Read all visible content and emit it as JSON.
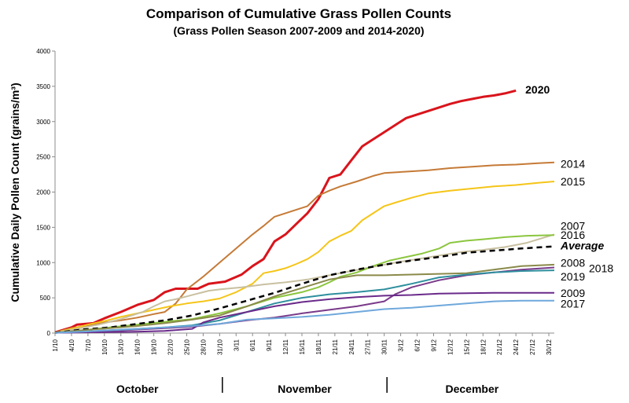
{
  "chart_data": {
    "type": "line",
    "title": "Comparison of Cumulative Grass Pollen Counts",
    "subtitle": "(Grass Pollen Season 2007-2009 and 2014-2020)",
    "ylabel": "Cumulative Daily Pollen Count (grains/m³)",
    "ylim": [
      0,
      4000
    ],
    "yticks": [
      0,
      500,
      1000,
      1500,
      2000,
      2500,
      3000,
      3500,
      4000
    ],
    "xlim": [
      0,
      91
    ],
    "xticks": [
      "1/10",
      "4/10",
      "7/10",
      "10/10",
      "13/10",
      "16/10",
      "19/10",
      "22/10",
      "25/10",
      "28/10",
      "31/10",
      "3/11",
      "6/11",
      "9/11",
      "12/11",
      "15/11",
      "18/11",
      "21/11",
      "24/11",
      "27/11",
      "30/11",
      "3/12",
      "6/12",
      "9/12",
      "12/12",
      "15/12",
      "18/12",
      "21/12",
      "24/12",
      "27/12",
      "30/12"
    ],
    "months": [
      {
        "label": "October",
        "center": 15
      },
      {
        "label": "November",
        "center": 45.5
      },
      {
        "label": "December",
        "center": 76
      }
    ],
    "month_dividers": [
      30.5,
      60.5
    ],
    "grid": false,
    "legend": "end-of-line labels",
    "series": [
      {
        "name": "2020",
        "color": "#d9141c",
        "width": 3,
        "dash": "",
        "bold": true,
        "points": [
          [
            0,
            10
          ],
          [
            3,
            80
          ],
          [
            4,
            120
          ],
          [
            7,
            140
          ],
          [
            9,
            210
          ],
          [
            12,
            300
          ],
          [
            15,
            400
          ],
          [
            18,
            470
          ],
          [
            20,
            580
          ],
          [
            22,
            630
          ],
          [
            26,
            630
          ],
          [
            28,
            700
          ],
          [
            31,
            730
          ],
          [
            34,
            830
          ],
          [
            36,
            950
          ],
          [
            38,
            1050
          ],
          [
            40,
            1300
          ],
          [
            42,
            1400
          ],
          [
            44,
            1550
          ],
          [
            46,
            1700
          ],
          [
            48,
            1900
          ],
          [
            50,
            2200
          ],
          [
            52,
            2250
          ],
          [
            54,
            2450
          ],
          [
            56,
            2650
          ],
          [
            58,
            2750
          ],
          [
            60,
            2850
          ],
          [
            62,
            2950
          ],
          [
            64,
            3050
          ],
          [
            66,
            3100
          ],
          [
            68,
            3150
          ],
          [
            70,
            3200
          ],
          [
            72,
            3250
          ],
          [
            74,
            3290
          ],
          [
            76,
            3320
          ],
          [
            78,
            3350
          ],
          [
            80,
            3370
          ],
          [
            82,
            3400
          ],
          [
            84,
            3440
          ]
        ]
      },
      {
        "name": "2014",
        "color": "#c57a36",
        "width": 2,
        "dash": "",
        "points": [
          [
            0,
            10
          ],
          [
            3,
            70
          ],
          [
            6,
            110
          ],
          [
            9,
            150
          ],
          [
            12,
            180
          ],
          [
            15,
            220
          ],
          [
            18,
            270
          ],
          [
            20,
            300
          ],
          [
            22,
            420
          ],
          [
            24,
            620
          ],
          [
            27,
            800
          ],
          [
            30,
            1000
          ],
          [
            33,
            1200
          ],
          [
            36,
            1400
          ],
          [
            38,
            1520
          ],
          [
            40,
            1650
          ],
          [
            42,
            1700
          ],
          [
            44,
            1750
          ],
          [
            46,
            1800
          ],
          [
            48,
            1950
          ],
          [
            50,
            2020
          ],
          [
            52,
            2080
          ],
          [
            55,
            2150
          ],
          [
            58,
            2230
          ],
          [
            60,
            2270
          ],
          [
            64,
            2290
          ],
          [
            68,
            2310
          ],
          [
            72,
            2340
          ],
          [
            76,
            2360
          ],
          [
            80,
            2380
          ],
          [
            84,
            2390
          ],
          [
            88,
            2410
          ],
          [
            91,
            2420
          ]
        ]
      },
      {
        "name": "2015",
        "color": "#f5c518",
        "width": 2,
        "dash": "",
        "points": [
          [
            0,
            5
          ],
          [
            3,
            60
          ],
          [
            6,
            120
          ],
          [
            9,
            170
          ],
          [
            12,
            230
          ],
          [
            15,
            280
          ],
          [
            18,
            330
          ],
          [
            21,
            380
          ],
          [
            24,
            420
          ],
          [
            27,
            450
          ],
          [
            30,
            490
          ],
          [
            33,
            580
          ],
          [
            36,
            700
          ],
          [
            38,
            850
          ],
          [
            40,
            880
          ],
          [
            42,
            920
          ],
          [
            44,
            980
          ],
          [
            46,
            1050
          ],
          [
            48,
            1150
          ],
          [
            50,
            1300
          ],
          [
            52,
            1380
          ],
          [
            54,
            1450
          ],
          [
            56,
            1600
          ],
          [
            58,
            1700
          ],
          [
            60,
            1800
          ],
          [
            62,
            1850
          ],
          [
            65,
            1920
          ],
          [
            68,
            1980
          ],
          [
            72,
            2020
          ],
          [
            76,
            2050
          ],
          [
            80,
            2080
          ],
          [
            84,
            2100
          ],
          [
            88,
            2130
          ],
          [
            91,
            2150
          ]
        ]
      },
      {
        "name": "2007",
        "color": "#c8c0a0",
        "width": 2,
        "dash": "",
        "points": [
          [
            0,
            5
          ],
          [
            4,
            60
          ],
          [
            8,
            120
          ],
          [
            12,
            200
          ],
          [
            16,
            300
          ],
          [
            18,
            380
          ],
          [
            20,
            450
          ],
          [
            22,
            480
          ],
          [
            24,
            520
          ],
          [
            26,
            560
          ],
          [
            28,
            600
          ],
          [
            30,
            620
          ],
          [
            34,
            650
          ],
          [
            38,
            690
          ],
          [
            42,
            720
          ],
          [
            46,
            760
          ],
          [
            50,
            820
          ],
          [
            54,
            880
          ],
          [
            58,
            940
          ],
          [
            62,
            1000
          ],
          [
            66,
            1050
          ],
          [
            70,
            1100
          ],
          [
            74,
            1150
          ],
          [
            78,
            1180
          ],
          [
            82,
            1220
          ],
          [
            86,
            1280
          ],
          [
            91,
            1400
          ]
        ]
      },
      {
        "name": "2016",
        "color": "#8cc63f",
        "width": 2,
        "dash": "",
        "points": [
          [
            0,
            5
          ],
          [
            5,
            40
          ],
          [
            10,
            80
          ],
          [
            15,
            120
          ],
          [
            20,
            160
          ],
          [
            25,
            200
          ],
          [
            30,
            280
          ],
          [
            35,
            380
          ],
          [
            40,
            500
          ],
          [
            45,
            580
          ],
          [
            48,
            650
          ],
          [
            50,
            720
          ],
          [
            52,
            800
          ],
          [
            55,
            860
          ],
          [
            58,
            950
          ],
          [
            61,
            1030
          ],
          [
            64,
            1080
          ],
          [
            67,
            1130
          ],
          [
            70,
            1200
          ],
          [
            72,
            1280
          ],
          [
            75,
            1310
          ],
          [
            78,
            1330
          ],
          [
            82,
            1360
          ],
          [
            86,
            1380
          ],
          [
            91,
            1390
          ]
        ]
      },
      {
        "name": "Average",
        "color": "#000000",
        "width": 2.5,
        "dash": "7,5",
        "bold": true,
        "italic": true,
        "points": [
          [
            0,
            5
          ],
          [
            5,
            50
          ],
          [
            10,
            80
          ],
          [
            15,
            130
          ],
          [
            20,
            180
          ],
          [
            25,
            250
          ],
          [
            30,
            350
          ],
          [
            35,
            460
          ],
          [
            40,
            570
          ],
          [
            45,
            700
          ],
          [
            50,
            820
          ],
          [
            55,
            900
          ],
          [
            60,
            970
          ],
          [
            65,
            1030
          ],
          [
            70,
            1080
          ],
          [
            75,
            1140
          ],
          [
            80,
            1170
          ],
          [
            85,
            1200
          ],
          [
            91,
            1230
          ]
        ]
      },
      {
        "name": "2008",
        "color": "#8a8a4a",
        "width": 2,
        "dash": "",
        "points": [
          [
            0,
            5
          ],
          [
            5,
            40
          ],
          [
            10,
            70
          ],
          [
            15,
            100
          ],
          [
            20,
            140
          ],
          [
            25,
            190
          ],
          [
            30,
            250
          ],
          [
            35,
            380
          ],
          [
            40,
            520
          ],
          [
            45,
            640
          ],
          [
            50,
            760
          ],
          [
            55,
            820
          ],
          [
            60,
            820
          ],
          [
            65,
            830
          ],
          [
            70,
            840
          ],
          [
            75,
            850
          ],
          [
            80,
            900
          ],
          [
            85,
            950
          ],
          [
            91,
            970
          ]
        ]
      },
      {
        "name": "2018",
        "color": "#7a3a8a",
        "width": 2,
        "dash": "",
        "points": [
          [
            0,
            5
          ],
          [
            5,
            20
          ],
          [
            10,
            30
          ],
          [
            15,
            50
          ],
          [
            20,
            70
          ],
          [
            25,
            90
          ],
          [
            30,
            130
          ],
          [
            35,
            180
          ],
          [
            40,
            220
          ],
          [
            45,
            280
          ],
          [
            50,
            330
          ],
          [
            55,
            380
          ],
          [
            60,
            450
          ],
          [
            62,
            550
          ],
          [
            65,
            650
          ],
          [
            70,
            750
          ],
          [
            75,
            820
          ],
          [
            80,
            860
          ],
          [
            85,
            900
          ],
          [
            91,
            930
          ]
        ]
      },
      {
        "name": "2019",
        "color": "#2e8f9e",
        "width": 2,
        "dash": "",
        "points": [
          [
            0,
            5
          ],
          [
            5,
            20
          ],
          [
            10,
            40
          ],
          [
            15,
            60
          ],
          [
            20,
            80
          ],
          [
            25,
            110
          ],
          [
            30,
            180
          ],
          [
            35,
            300
          ],
          [
            40,
            420
          ],
          [
            45,
            500
          ],
          [
            50,
            550
          ],
          [
            55,
            580
          ],
          [
            60,
            620
          ],
          [
            65,
            700
          ],
          [
            70,
            790
          ],
          [
            75,
            830
          ],
          [
            80,
            860
          ],
          [
            85,
            880
          ],
          [
            91,
            890
          ]
        ]
      },
      {
        "name": "2009",
        "color": "#6a2a8a",
        "width": 2,
        "dash": "",
        "points": [
          [
            0,
            5
          ],
          [
            5,
            10
          ],
          [
            10,
            15
          ],
          [
            15,
            20
          ],
          [
            20,
            30
          ],
          [
            25,
            60
          ],
          [
            27,
            150
          ],
          [
            30,
            220
          ],
          [
            35,
            300
          ],
          [
            40,
            380
          ],
          [
            45,
            440
          ],
          [
            50,
            480
          ],
          [
            55,
            510
          ],
          [
            60,
            530
          ],
          [
            65,
            540
          ],
          [
            70,
            560
          ],
          [
            75,
            565
          ],
          [
            80,
            570
          ],
          [
            85,
            570
          ],
          [
            91,
            570
          ]
        ]
      },
      {
        "name": "2017",
        "color": "#6fa8dc",
        "width": 2,
        "dash": "",
        "points": [
          [
            0,
            5
          ],
          [
            5,
            20
          ],
          [
            10,
            40
          ],
          [
            15,
            60
          ],
          [
            20,
            80
          ],
          [
            25,
            100
          ],
          [
            30,
            130
          ],
          [
            35,
            190
          ],
          [
            40,
            210
          ],
          [
            45,
            230
          ],
          [
            50,
            260
          ],
          [
            55,
            300
          ],
          [
            60,
            340
          ],
          [
            65,
            360
          ],
          [
            70,
            390
          ],
          [
            75,
            420
          ],
          [
            80,
            450
          ],
          [
            85,
            460
          ],
          [
            91,
            460
          ]
        ]
      }
    ],
    "label_positions": {
      "2020": {
        "y": 3455,
        "dx": 12,
        "size": 14
      },
      "2014": {
        "y": 2400,
        "dx": 8,
        "size": 14
      },
      "2015": {
        "y": 2150,
        "dx": 8,
        "size": 14
      },
      "2007": {
        "y": 1520,
        "dx": 8,
        "size": 14
      },
      "2016": {
        "y": 1390,
        "dx": 8,
        "size": 14
      },
      "Average": {
        "y": 1240,
        "dx": 8,
        "size": 14
      },
      "2008": {
        "y": 1000,
        "dx": 8,
        "size": 14
      },
      "2018": {
        "y": 920,
        "dx": 44,
        "size": 14
      },
      "2019": {
        "y": 800,
        "dx": 8,
        "size": 14
      },
      "2009": {
        "y": 570,
        "dx": 8,
        "size": 14
      },
      "2017": {
        "y": 420,
        "dx": 8,
        "size": 14
      }
    }
  }
}
